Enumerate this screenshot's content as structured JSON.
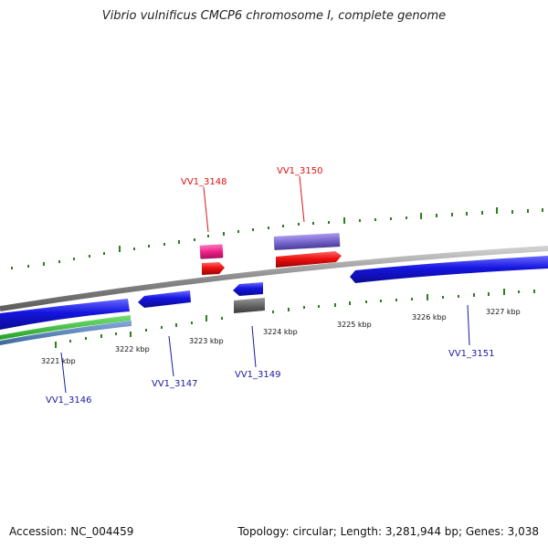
{
  "title": "Vibrio vulnificus CMCP6 chromosome I, complete genome",
  "footer": {
    "accession": "Accession: NC_004459",
    "stats": "Topology: circular; Length: 3,281,944 bp; Genes: 3,038"
  },
  "kbp_labels": [
    "3221 kbp",
    "3222 kbp",
    "3223 kbp",
    "3224 kbp",
    "3225 kbp",
    "3226 kbp",
    "3227 kbp"
  ],
  "gene_labels": [
    {
      "name": "VV1_3146",
      "color": "#1a1aa0"
    },
    {
      "name": "VV1_3147",
      "color": "#1a1aa0"
    },
    {
      "name": "VV1_3148",
      "color": "#dd1111"
    },
    {
      "name": "VV1_3149",
      "color": "#1a1aa0"
    },
    {
      "name": "VV1_3150",
      "color": "#dd1111"
    },
    {
      "name": "VV1_3151",
      "color": "#1a1aa0"
    }
  ],
  "colors": {
    "backbone": "#8a8a8a",
    "tick": "#2e7d1f",
    "cds_blue": "#1515e0",
    "cds_red": "#ee1111",
    "cds_magenta": "#ee2288",
    "cds_purple": "#7766cc",
    "cds_gray": "#666666",
    "green_track": "#33bb33",
    "steel_track": "#5588bb"
  }
}
